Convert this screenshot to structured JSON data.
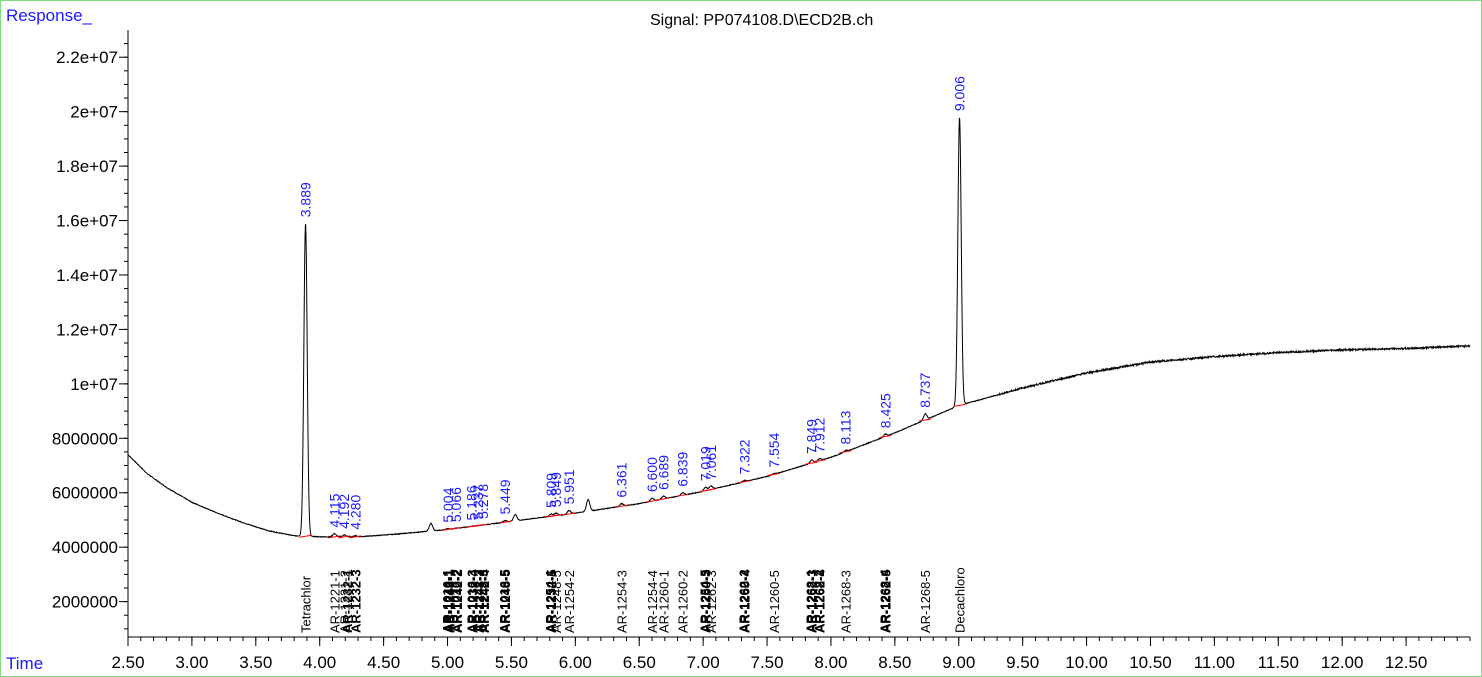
{
  "chart_data": {
    "type": "line",
    "title": "Signal: PP074108.D\\ECD2B.ch",
    "ylabel": "Response_",
    "xlabel": "Time",
    "xlim": [
      2.5,
      13.0
    ],
    "ylim": [
      700000,
      23000000
    ],
    "x_ticks": [
      "2.50",
      "3.00",
      "3.50",
      "4.00",
      "4.50",
      "5.00",
      "5.50",
      "6.00",
      "6.50",
      "7.00",
      "7.50",
      "8.00",
      "8.50",
      "9.00",
      "9.50",
      "10.00",
      "10.50",
      "11.00",
      "11.50",
      "12.00",
      "12.50"
    ],
    "y_ticks": [
      {
        "v": 2000000,
        "label": "2000000"
      },
      {
        "v": 4000000,
        "label": "4000000"
      },
      {
        "v": 6000000,
        "label": "6000000"
      },
      {
        "v": 8000000,
        "label": "8000000"
      },
      {
        "v": 10000000,
        "label": "1e+07"
      },
      {
        "v": 12000000,
        "label": "1.2e+07"
      },
      {
        "v": 14000000,
        "label": "1.4e+07"
      },
      {
        "v": 16000000,
        "label": "1.6e+07"
      },
      {
        "v": 18000000,
        "label": "1.8e+07"
      },
      {
        "v": 20000000,
        "label": "2e+07"
      },
      {
        "v": 22000000,
        "label": "2.2e+07"
      }
    ],
    "baseline": [
      [
        2.5,
        7400000
      ],
      [
        2.65,
        6700000
      ],
      [
        2.8,
        6200000
      ],
      [
        3.0,
        5650000
      ],
      [
        3.2,
        5250000
      ],
      [
        3.4,
        4900000
      ],
      [
        3.6,
        4600000
      ],
      [
        3.8,
        4420000
      ],
      [
        4.0,
        4380000
      ],
      [
        4.3,
        4380000
      ],
      [
        4.6,
        4480000
      ],
      [
        5.0,
        4650000
      ],
      [
        5.5,
        4950000
      ],
      [
        6.0,
        5250000
      ],
      [
        6.5,
        5600000
      ],
      [
        7.0,
        6050000
      ],
      [
        7.5,
        6600000
      ],
      [
        8.0,
        7300000
      ],
      [
        8.5,
        8200000
      ],
      [
        9.0,
        9200000
      ],
      [
        9.5,
        9850000
      ],
      [
        10.0,
        10400000
      ],
      [
        10.5,
        10800000
      ],
      [
        11.0,
        11000000
      ],
      [
        11.5,
        11150000
      ],
      [
        12.0,
        11250000
      ],
      [
        12.5,
        11300000
      ],
      [
        13.0,
        11400000
      ]
    ],
    "peaks": [
      {
        "rt": 3.889,
        "height": 15900000,
        "label": "3.889"
      },
      {
        "rt": 4.115,
        "height": 4500000,
        "label": "4.115"
      },
      {
        "rt": 4.192,
        "height": 4450000,
        "label": "4.192"
      },
      {
        "rt": 4.28,
        "height": 4420000,
        "label": "4.280"
      },
      {
        "rt": 4.87,
        "height": 4870000,
        "label": ""
      },
      {
        "rt": 5.004,
        "height": 4680000,
        "label": "5.004"
      },
      {
        "rt": 5.066,
        "height": 4700000,
        "label": "5.066"
      },
      {
        "rt": 5.186,
        "height": 4760000,
        "label": "5.186"
      },
      {
        "rt": 5.237,
        "height": 4790000,
        "label": "5.237"
      },
      {
        "rt": 5.278,
        "height": 4820000,
        "label": "5.278"
      },
      {
        "rt": 5.449,
        "height": 4980000,
        "label": "5.449"
      },
      {
        "rt": 5.53,
        "height": 5200000,
        "label": ""
      },
      {
        "rt": 5.809,
        "height": 5220000,
        "label": "5.809"
      },
      {
        "rt": 5.849,
        "height": 5250000,
        "label": "5.849"
      },
      {
        "rt": 5.951,
        "height": 5350000,
        "label": "5.951"
      },
      {
        "rt": 6.1,
        "height": 5750000,
        "label": ""
      },
      {
        "rt": 6.361,
        "height": 5600000,
        "label": "6.361"
      },
      {
        "rt": 6.6,
        "height": 5800000,
        "label": "6.600"
      },
      {
        "rt": 6.689,
        "height": 5880000,
        "label": "6.689"
      },
      {
        "rt": 6.839,
        "height": 6000000,
        "label": "6.839"
      },
      {
        "rt": 7.019,
        "height": 6200000,
        "label": "7.019"
      },
      {
        "rt": 7.061,
        "height": 6250000,
        "label": "7.061"
      },
      {
        "rt": 7.322,
        "height": 6450000,
        "label": "7.322"
      },
      {
        "rt": 7.554,
        "height": 6700000,
        "label": "7.554"
      },
      {
        "rt": 7.849,
        "height": 7200000,
        "label": "7.849"
      },
      {
        "rt": 7.912,
        "height": 7250000,
        "label": "7.912"
      },
      {
        "rt": 8.113,
        "height": 7550000,
        "label": "8.113"
      },
      {
        "rt": 8.425,
        "height": 8150000,
        "label": "8.425"
      },
      {
        "rt": 8.737,
        "height": 8900000,
        "label": "8.737"
      },
      {
        "rt": 9.006,
        "height": 19800000,
        "label": "9.006"
      }
    ],
    "compounds": [
      {
        "rt": 3.889,
        "label": "Tetrachlor",
        "bold": false
      },
      {
        "rt": 4.115,
        "label": "AR-1221-1",
        "bold": false
      },
      {
        "rt": 4.192,
        "label": "AR-1221-2",
        "bold": false
      },
      {
        "rt": 4.215,
        "label": "AR-1232-1",
        "bold": true
      },
      {
        "rt": 4.28,
        "label": "AR-1232-3",
        "bold": true
      },
      {
        "rt": 4.995,
        "label": "AR-1016-1",
        "bold": true
      },
      {
        "rt": 5.004,
        "label": "AR-1242-1",
        "bold": true
      },
      {
        "rt": 5.015,
        "label": "AR-1248-1",
        "bold": true
      },
      {
        "rt": 5.066,
        "label": "AR-1016-2",
        "bold": true
      },
      {
        "rt": 5.075,
        "label": "AR-1242-2",
        "bold": true
      },
      {
        "rt": 5.186,
        "label": "AR-1016-3",
        "bold": true
      },
      {
        "rt": 5.195,
        "label": "AR-1232-4",
        "bold": true
      },
      {
        "rt": 5.237,
        "label": "AR-1242-3",
        "bold": true
      },
      {
        "rt": 5.245,
        "label": "AR-1248-2",
        "bold": true
      },
      {
        "rt": 5.278,
        "label": "AR-1248-3",
        "bold": true
      },
      {
        "rt": 5.286,
        "label": "AR-1242-4",
        "bold": true
      },
      {
        "rt": 5.44,
        "label": "AR-1016-5",
        "bold": true
      },
      {
        "rt": 5.449,
        "label": "AR-1248-5",
        "bold": true
      },
      {
        "rt": 5.8,
        "label": "AR-1254-1",
        "bold": true
      },
      {
        "rt": 5.809,
        "label": "AR-1232-5",
        "bold": true
      },
      {
        "rt": 5.849,
        "label": "AR-1248-5",
        "bold": false
      },
      {
        "rt": 5.951,
        "label": "AR-1254-2",
        "bold": false
      },
      {
        "rt": 6.361,
        "label": "AR-1254-3",
        "bold": false
      },
      {
        "rt": 6.6,
        "label": "AR-1254-4",
        "bold": false
      },
      {
        "rt": 6.689,
        "label": "AR-1260-1",
        "bold": false
      },
      {
        "rt": 6.839,
        "label": "AR-1260-2",
        "bold": false
      },
      {
        "rt": 7.01,
        "label": "AR-1254-5",
        "bold": true
      },
      {
        "rt": 7.019,
        "label": "AR-1260-3",
        "bold": true
      },
      {
        "rt": 7.061,
        "label": "AR-1262-3",
        "bold": false
      },
      {
        "rt": 7.315,
        "label": "AR-1262-2",
        "bold": true
      },
      {
        "rt": 7.322,
        "label": "AR-1260-4",
        "bold": true
      },
      {
        "rt": 7.554,
        "label": "AR-1260-5",
        "bold": false
      },
      {
        "rt": 7.84,
        "label": "AR-1268-1",
        "bold": true
      },
      {
        "rt": 7.849,
        "label": "AR-1262-3",
        "bold": true
      },
      {
        "rt": 7.905,
        "label": "AR-1268-2",
        "bold": true
      },
      {
        "rt": 7.912,
        "label": "AR-1262-4",
        "bold": true
      },
      {
        "rt": 8.113,
        "label": "AR-1268-3",
        "bold": false
      },
      {
        "rt": 8.418,
        "label": "AR-1268-4",
        "bold": true
      },
      {
        "rt": 8.425,
        "label": "AR-1262-5",
        "bold": true
      },
      {
        "rt": 8.737,
        "label": "AR-1268-5",
        "bold": false
      },
      {
        "rt": 9.006,
        "label": "Decachloro",
        "bold": false
      }
    ]
  },
  "colors": {
    "accent": "#1a1aff",
    "trace": "#000000",
    "frame": "#7fdc7f",
    "baseline_mark": "#ff0000"
  }
}
